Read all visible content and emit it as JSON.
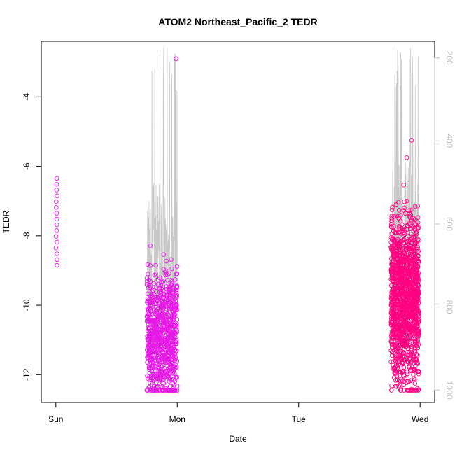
{
  "chart_data": {
    "type": "scatter",
    "title": "ATOM2 Northeast_Pacific_2 TEDR",
    "xlabel": "Date",
    "ylabel": "TEDR",
    "x_ticks": [
      {
        "label": "Sun",
        "day": 0
      },
      {
        "label": "Mon",
        "day": 1
      },
      {
        "label": "Tue",
        "day": 2
      },
      {
        "label": "Wed",
        "day": 3
      }
    ],
    "xlim_days": [
      -0.12,
      3.12
    ],
    "ylim": [
      -12.8,
      -2.4
    ],
    "y_ticks": [
      -4,
      -6,
      -8,
      -10,
      -12
    ],
    "right_axis": {
      "label": "",
      "ticks": [
        200,
        400,
        600,
        800,
        1000
      ],
      "lim": [
        160,
        1030
      ],
      "inverted": true,
      "color": "#bdbdbd"
    },
    "grid": false,
    "legend": "none",
    "series": [
      {
        "color": "#e619e6",
        "marker": "open-circle",
        "clusters": [
          {
            "day_range": [
              0.0,
              0.01
            ],
            "y_range": [
              -8.85,
              -6.35
            ],
            "count": 16
          },
          {
            "day_range": [
              0.75,
              1.0
            ],
            "y_range": [
              -12.45,
              -6.15
            ],
            "count": 900,
            "center": -10.9,
            "spread": 0.9
          }
        ],
        "outliers": [
          {
            "day": 0.99,
            "y": -2.9
          }
        ]
      },
      {
        "color": "#ff0080",
        "marker": "open-circle",
        "clusters": [
          {
            "day_range": [
              2.76,
              2.99
            ],
            "y_range": [
              -12.45,
              -6.0
            ],
            "count": 1400,
            "center": -9.8,
            "spread": 1.2
          }
        ],
        "outliers": [
          {
            "day": 2.89,
            "y": -5.75
          },
          {
            "day": 2.93,
            "y": -5.25
          },
          {
            "day": 2.95,
            "y": -12.45
          }
        ]
      }
    ],
    "altitude_trace": {
      "color": "#c8c8c8",
      "axis": "right",
      "description_free": true,
      "segments": [
        {
          "day_range": [
            0.75,
            1.0
          ],
          "base_range": [
            500,
            900
          ]
        },
        {
          "day_range": [
            2.76,
            2.99
          ],
          "base_range": [
            450,
            900
          ]
        }
      ]
    },
    "colors": {
      "axis": "#000000",
      "background": "#ffffff"
    }
  }
}
